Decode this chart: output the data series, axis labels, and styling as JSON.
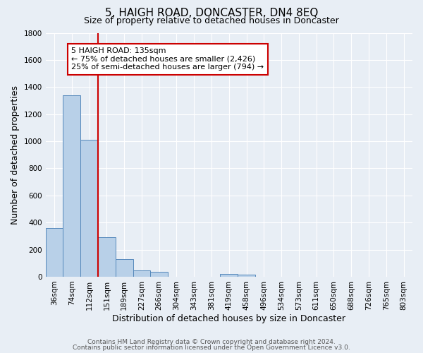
{
  "title": "5, HAIGH ROAD, DONCASTER, DN4 8EQ",
  "subtitle": "Size of property relative to detached houses in Doncaster",
  "xlabel": "Distribution of detached houses by size in Doncaster",
  "ylabel": "Number of detached properties",
  "bar_labels": [
    "36sqm",
    "74sqm",
    "112sqm",
    "151sqm",
    "189sqm",
    "227sqm",
    "266sqm",
    "304sqm",
    "343sqm",
    "381sqm",
    "419sqm",
    "458sqm",
    "496sqm",
    "534sqm",
    "573sqm",
    "611sqm",
    "650sqm",
    "688sqm",
    "726sqm",
    "765sqm",
    "803sqm"
  ],
  "bar_values": [
    360,
    1340,
    1010,
    290,
    130,
    45,
    35,
    0,
    0,
    0,
    20,
    15,
    0,
    0,
    0,
    0,
    0,
    0,
    0,
    0,
    0
  ],
  "bar_color": "#b8d0e8",
  "bar_edgecolor": "#5588bb",
  "bg_color": "#e8eef5",
  "plot_bg_color": "#e8eef5",
  "grid_color": "#ffffff",
  "vline_color": "#cc0000",
  "vline_pos": 2.5,
  "ylim": [
    0,
    1800
  ],
  "yticks": [
    0,
    200,
    400,
    600,
    800,
    1000,
    1200,
    1400,
    1600,
    1800
  ],
  "annotation_title": "5 HAIGH ROAD: 135sqm",
  "annotation_line1": "← 75% of detached houses are smaller (2,426)",
  "annotation_line2": "25% of semi-detached houses are larger (794) →",
  "annotation_box_edgecolor": "#cc0000",
  "footer_line1": "Contains HM Land Registry data © Crown copyright and database right 2024.",
  "footer_line2": "Contains public sector information licensed under the Open Government Licence v3.0.",
  "title_fontsize": 11,
  "subtitle_fontsize": 9,
  "axis_label_fontsize": 9,
  "tick_fontsize": 7.5,
  "annotation_fontsize": 8,
  "footer_fontsize": 6.5
}
